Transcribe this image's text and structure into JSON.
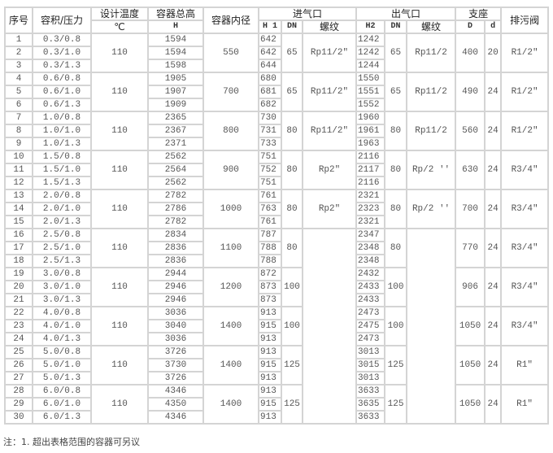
{
  "headers": {
    "no": "序号",
    "vol_pressure": "容积/压力",
    "design_temp": "设计温度",
    "temp_unit": "℃",
    "total_height": "容器总高",
    "height_unit": "H",
    "inner_diameter": "容器内径",
    "inlet": "进气口",
    "inlet_h": "H 1",
    "inlet_dn": "DN",
    "inlet_thread": "螺纹",
    "outlet": "出气口",
    "outlet_h": "H2",
    "outlet_dn": "DN",
    "outlet_thread": "螺纹",
    "support": "支座",
    "support_D": "D",
    "support_d": "d",
    "drain": "排污阀"
  },
  "groups": [
    {
      "temp": "110",
      "diameter": "550",
      "in_dn": "65",
      "in_thread": "Rp11/2″",
      "out_dn": "65",
      "out_thread": "Rp11/2",
      "D": "400",
      "d": "20",
      "drain": "R1/2″",
      "rows": [
        {
          "no": "1",
          "vp": "0.3/0.8",
          "H": "1594",
          "H1": "642",
          "H2": "1242"
        },
        {
          "no": "2",
          "vp": "0.3/1.0",
          "H": "1594",
          "H1": "642",
          "H2": "1242"
        },
        {
          "no": "3",
          "vp": "0.3/1.3",
          "H": "1598",
          "H1": "644",
          "H2": "1244"
        }
      ]
    },
    {
      "temp": "110",
      "diameter": "700",
      "in_dn": "65",
      "in_thread": "Rp11/2″",
      "out_dn": "65",
      "out_thread": "Rp11/2",
      "D": "490",
      "d": "24",
      "drain": "R1/2″",
      "rows": [
        {
          "no": "4",
          "vp": "0.6/0.8",
          "H": "1905",
          "H1": "680",
          "H2": "1550"
        },
        {
          "no": "5",
          "vp": "0.6/1.0",
          "H": "1907",
          "H1": "681",
          "H2": "1551"
        },
        {
          "no": "6",
          "vp": "0.6/1.3",
          "H": "1909",
          "H1": "682",
          "H2": "1552"
        }
      ]
    },
    {
      "temp": "110",
      "diameter": "800",
      "in_dn": "80",
      "in_thread": "Rp11/2″",
      "out_dn": "80",
      "out_thread": "Rp11/2",
      "D": "560",
      "d": "24",
      "drain": "R1/2″",
      "rows": [
        {
          "no": "7",
          "vp": "1.0/0.8",
          "H": "2365",
          "H1": "730",
          "H2": "1960"
        },
        {
          "no": "8",
          "vp": "1.0/1.0",
          "H": "2367",
          "H1": "731",
          "H2": "1961"
        },
        {
          "no": "9",
          "vp": "1.0/1.3",
          "H": "2371",
          "H1": "733",
          "H2": "1963"
        }
      ]
    },
    {
      "temp": "110",
      "diameter": "900",
      "in_dn": "80",
      "in_thread": "Rp2″",
      "out_dn": "80",
      "out_thread": "Rp/2 ''",
      "D": "630",
      "d": "24",
      "drain": "R3/4″",
      "rows": [
        {
          "no": "10",
          "vp": "1.5/0.8",
          "H": "2562",
          "H1": "751",
          "H2": "2116"
        },
        {
          "no": "11",
          "vp": "1.5/1.0",
          "H": "2564",
          "H1": "752",
          "H2": "2117"
        },
        {
          "no": "12",
          "vp": "1.5/1.3",
          "H": "2562",
          "H1": "751",
          "H2": "2116"
        }
      ]
    },
    {
      "temp": "110",
      "diameter": "1000",
      "in_dn": "80",
      "in_thread": "Rp2″",
      "out_dn": "80",
      "out_thread": "Rp/2 ''",
      "D": "700",
      "d": "24",
      "drain": "R3/4″",
      "rows": [
        {
          "no": "13",
          "vp": "2.0/0.8",
          "H": "2782",
          "H1": "761",
          "H2": "2321"
        },
        {
          "no": "14",
          "vp": "2.0/1.0",
          "H": "2786",
          "H1": "763",
          "H2": "2323"
        },
        {
          "no": "15",
          "vp": "2.0/1.3",
          "H": "2782",
          "H1": "761",
          "H2": "2321"
        }
      ]
    },
    {
      "temp": "110",
      "diameter": "1100",
      "in_dn": "80",
      "in_thread": "",
      "out_dn": "80",
      "out_thread": "",
      "D": "770",
      "d": "24",
      "drain": "R3/4″",
      "rows": [
        {
          "no": "16",
          "vp": "2.5/0.8",
          "H": "2834",
          "H1": "787",
          "H2": "2347"
        },
        {
          "no": "17",
          "vp": "2.5/1.0",
          "H": "2836",
          "H1": "788",
          "H2": "2348"
        },
        {
          "no": "18",
          "vp": "2.5/1.3",
          "H": "2836",
          "H1": "788",
          "H2": "2348"
        }
      ]
    },
    {
      "temp": "110",
      "diameter": "1200",
      "in_dn": "100",
      "in_thread": "",
      "out_dn": "100",
      "out_thread": "",
      "D": "906",
      "d": "24",
      "drain": "R3/4″",
      "rows": [
        {
          "no": "19",
          "vp": "3.0/0.8",
          "H": "2944",
          "H1": "872",
          "H2": "2432"
        },
        {
          "no": "20",
          "vp": "3.0/1.0",
          "H": "2946",
          "H1": "873",
          "H2": "2433"
        },
        {
          "no": "21",
          "vp": "3.0/1.3",
          "H": "2946",
          "H1": "873",
          "H2": "2433"
        }
      ]
    },
    {
      "temp": "110",
      "diameter": "1400",
      "in_dn": "100",
      "in_thread": "",
      "out_dn": "100",
      "out_thread": "",
      "D": "1050",
      "d": "24",
      "drain": "R3/4″",
      "rows": [
        {
          "no": "22",
          "vp": "4.0/0.8",
          "H": "3036",
          "H1": "913",
          "H2": "2473"
        },
        {
          "no": "23",
          "vp": "4.0/1.0",
          "H": "3040",
          "H1": "915",
          "H2": "2475"
        },
        {
          "no": "24",
          "vp": "4.0/1.3",
          "H": "3036",
          "H1": "913",
          "H2": "2473"
        }
      ]
    },
    {
      "temp": "110",
      "diameter": "1400",
      "in_dn": "125",
      "in_thread": "",
      "out_dn": "125",
      "out_thread": "",
      "D": "1050",
      "d": "24",
      "drain": "R1″",
      "rows": [
        {
          "no": "25",
          "vp": "5.0/0.8",
          "H": "3726",
          "H1": "913",
          "H2": "3013"
        },
        {
          "no": "26",
          "vp": "5.0/1.0",
          "H": "3730",
          "H1": "915",
          "H2": "3015"
        },
        {
          "no": "27",
          "vp": "5.0/1.3",
          "H": "3726",
          "H1": "913",
          "H2": "3013"
        }
      ]
    },
    {
      "temp": "110",
      "diameter": "1400",
      "in_dn": "125",
      "in_thread": "",
      "out_dn": "125",
      "out_thread": "",
      "D": "1050",
      "d": "24",
      "drain": "R1″",
      "rows": [
        {
          "no": "28",
          "vp": "6.0/0.8",
          "H": "4346",
          "H1": "913",
          "H2": "3633"
        },
        {
          "no": "29",
          "vp": "6.0/1.0",
          "H": "4350",
          "H1": "915",
          "H2": "3635"
        },
        {
          "no": "30",
          "vp": "6.0/1.3",
          "H": "4346",
          "H1": "913",
          "H2": "3633"
        }
      ]
    }
  ],
  "note": "注：1. 超出表格范围的容器可另议"
}
